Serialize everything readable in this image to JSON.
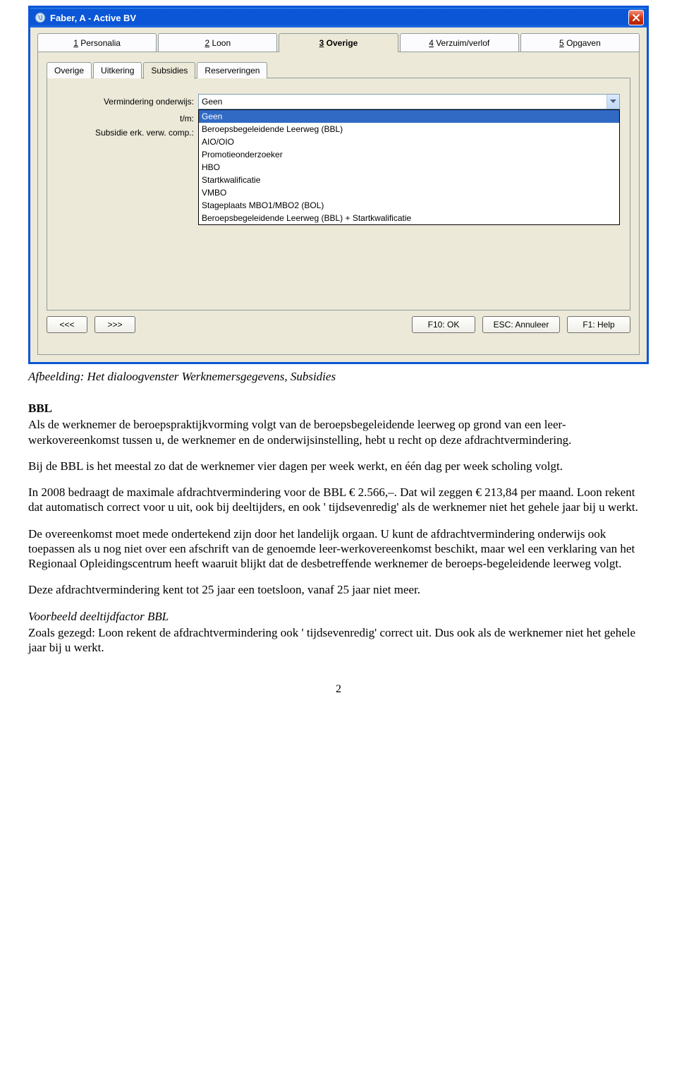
{
  "dialog": {
    "title": "Faber, A - Active BV",
    "mainTabs": [
      {
        "num": "1",
        "label": "Personalia",
        "active": false
      },
      {
        "num": "2",
        "label": "Loon",
        "active": false
      },
      {
        "num": "3",
        "label": "Overige",
        "active": true
      },
      {
        "num": "4",
        "label": "Verzuim/verlof",
        "active": false
      },
      {
        "num": "5",
        "label": "Opgaven",
        "active": false
      }
    ],
    "subTabs": [
      {
        "label": "Overige",
        "active": false
      },
      {
        "label": "Uitkering",
        "active": false
      },
      {
        "label": "Subsidies",
        "active": true
      },
      {
        "label": "Reserveringen",
        "active": false
      }
    ],
    "form": {
      "label_vermindering": "Vermindering onderwijs:",
      "label_tm": "t/m:",
      "label_subsidie": "Subsidie erk. verw. comp.:",
      "combo_value": "Geen",
      "options": [
        "Geen",
        "Beroepsbegeleidende Leerweg (BBL)",
        "AIO/OIO",
        "Promotieonderzoeker",
        "HBO",
        "Startkwalificatie",
        "VMBO",
        "Stageplaats MBO1/MBO2 (BOL)",
        "Beroepsbegeleidende Leerweg (BBL) + Startkwalificatie"
      ],
      "selected_index": 0
    },
    "footer": {
      "prev": "<<<",
      "next": ">>>",
      "ok": "F10: OK",
      "cancel": "ESC: Annuleer",
      "help": "F1: Help"
    }
  },
  "caption": "Afbeelding: Het dialoogvenster Werknemersgegevens, Subsidies",
  "doc": {
    "h_bbl": "BBL",
    "p1": "Als de werknemer de beroepspraktijkvorming volgt van de beroepsbegeleidende leerweg op grond van een leer-werkovereenkomst tussen u, de werknemer en de onderwijsinstelling, hebt u recht op deze afdrachtvermindering.",
    "p2": "Bij de BBL is het meestal zo dat de werknemer vier dagen per week werkt, en één dag per week scholing volgt.",
    "p3": "In 2008 bedraagt de maximale afdrachtvermindering voor de BBL € 2.566,–. Dat wil zeggen € 213,84 per maand. Loon rekent dat automatisch correct voor u uit, ook bij deeltijders, en ook ' tijdsevenredig' als de werknemer niet het gehele jaar bij u werkt.",
    "p4": "De overeenkomst moet mede ondertekend zijn door het landelijk orgaan. U kunt de afdrachtvermindering onderwijs ook toepassen als u nog niet over een afschrift van de genoemde leer-werkovereenkomst beschikt, maar wel een verklaring van het Regionaal Opleidingscentrum heeft waaruit blijkt dat de desbetreffende werknemer de beroeps-begeleidende leerweg volgt.",
    "p5": "Deze afdrachtvermindering kent tot 25 jaar een toetsloon, vanaf 25 jaar niet meer.",
    "h_vb": "Voorbeeld deeltijdfactor BBL",
    "p6": "Zoals gezegd: Loon rekent de afdrachtvermindering ook ' tijdsevenredig' correct uit. Dus ook als de werknemer niet het gehele jaar bij u werkt."
  },
  "page_number": "2"
}
